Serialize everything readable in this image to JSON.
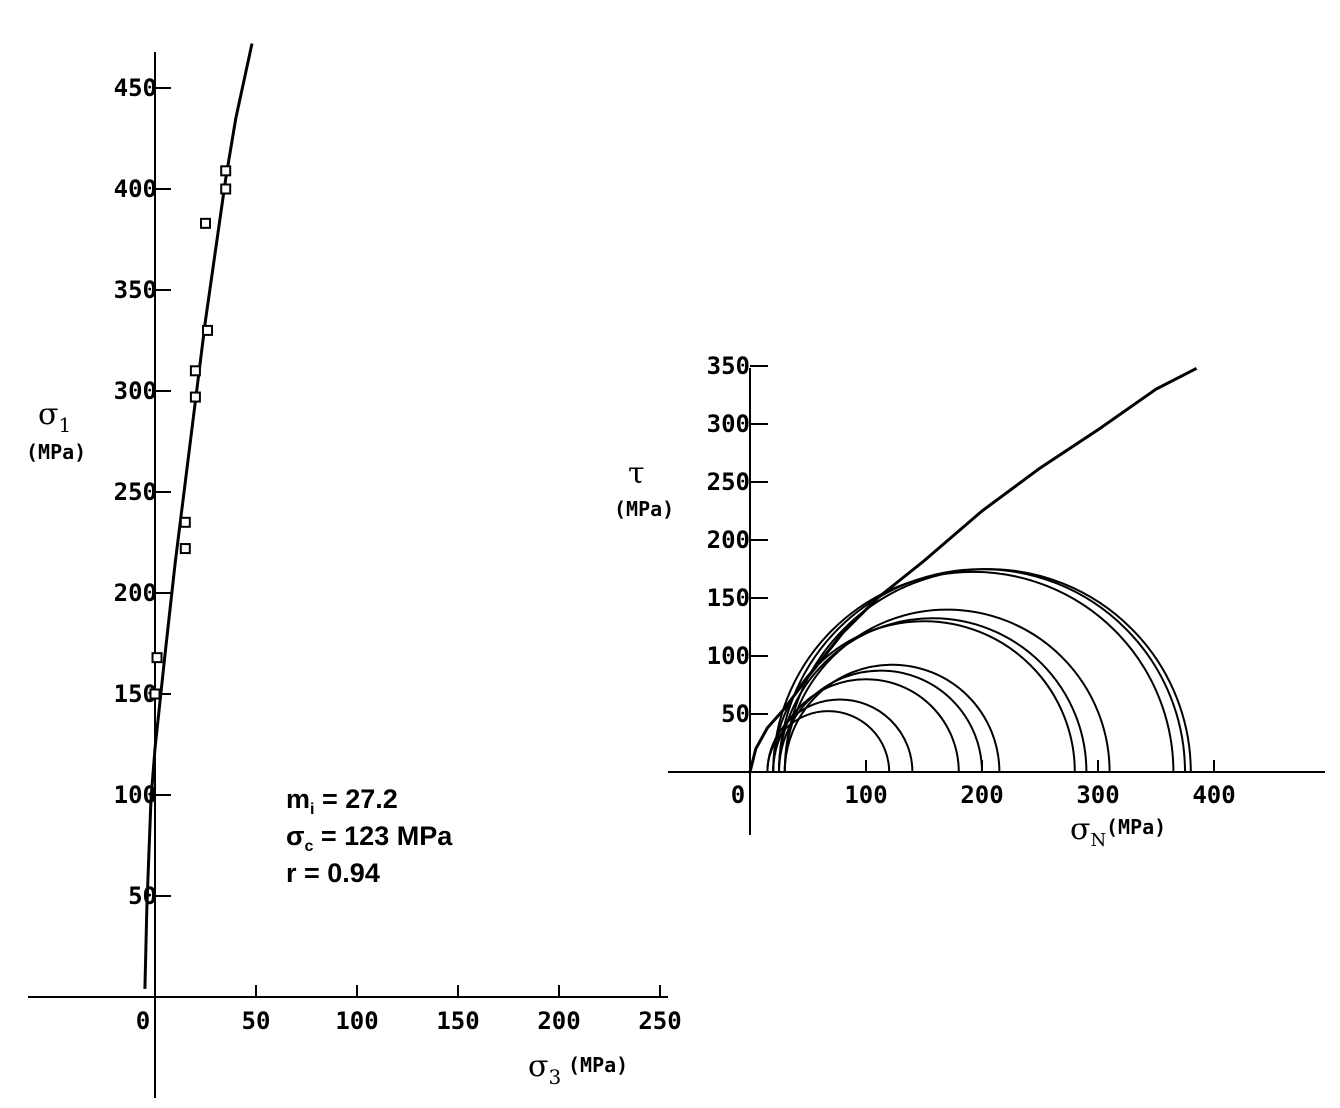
{
  "chart_data": [
    {
      "type": "scatter",
      "x_symbol": "σ",
      "x_subscript": "3",
      "x_unit": "(MPa)",
      "y_symbol": "σ",
      "y_subscript": "1",
      "y_unit": "(MPa)",
      "xlim": [
        0,
        250
      ],
      "ylim": [
        0,
        470
      ],
      "x_ticks": [
        0,
        50,
        100,
        150,
        200,
        250
      ],
      "y_ticks": [
        50,
        100,
        150,
        200,
        250,
        300,
        350,
        400,
        450
      ],
      "grid": false,
      "points": [
        {
          "x": 0,
          "y": 150
        },
        {
          "x": 1,
          "y": 168
        },
        {
          "x": 15,
          "y": 222
        },
        {
          "x": 15,
          "y": 235
        },
        {
          "x": 20,
          "y": 297
        },
        {
          "x": 20,
          "y": 310
        },
        {
          "x": 26,
          "y": 330
        },
        {
          "x": 25,
          "y": 383
        },
        {
          "x": 35,
          "y": 400
        },
        {
          "x": 35,
          "y": 409
        }
      ],
      "fit_curve": [
        {
          "x": -5,
          "y": 4
        },
        {
          "x": -4,
          "y": 45
        },
        {
          "x": -2,
          "y": 98
        },
        {
          "x": 0,
          "y": 123
        },
        {
          "x": 5,
          "y": 170
        },
        {
          "x": 10,
          "y": 215
        },
        {
          "x": 15,
          "y": 255
        },
        {
          "x": 20,
          "y": 295
        },
        {
          "x": 25,
          "y": 335
        },
        {
          "x": 30,
          "y": 370
        },
        {
          "x": 35,
          "y": 405
        },
        {
          "x": 40,
          "y": 435
        },
        {
          "x": 48,
          "y": 472
        }
      ],
      "annotations": [
        {
          "name": "m",
          "sub": "i",
          "value": " = 27.2"
        },
        {
          "name": "σ",
          "sub": "c",
          "value": " = 123 MPa"
        },
        {
          "name": "r",
          "sub": "",
          "value": " = 0.94"
        }
      ]
    },
    {
      "type": "line",
      "x_symbol": "σ",
      "x_subscript": "N",
      "x_unit": "(MPa)",
      "y_symbol": "τ",
      "y_unit": "(MPa)",
      "xlim": [
        0,
        450
      ],
      "ylim": [
        0,
        350
      ],
      "x_ticks": [
        0,
        100,
        200,
        300,
        400
      ],
      "y_ticks": [
        50,
        100,
        150,
        200,
        250,
        300,
        350
      ],
      "grid": false,
      "envelope": [
        {
          "x": 0,
          "y": 0
        },
        {
          "x": 5,
          "y": 20
        },
        {
          "x": 15,
          "y": 38
        },
        {
          "x": 30,
          "y": 55
        },
        {
          "x": 50,
          "y": 82
        },
        {
          "x": 80,
          "y": 120
        },
        {
          "x": 110,
          "y": 150
        },
        {
          "x": 150,
          "y": 182
        },
        {
          "x": 200,
          "y": 225
        },
        {
          "x": 250,
          "y": 262
        },
        {
          "x": 300,
          "y": 295
        },
        {
          "x": 350,
          "y": 330
        },
        {
          "x": 385,
          "y": 348
        }
      ],
      "mohr_circles": [
        {
          "s3": 15,
          "s1": 120
        },
        {
          "s3": 15,
          "s1": 140
        },
        {
          "s3": 20,
          "s1": 180
        },
        {
          "s3": 25,
          "s1": 200
        },
        {
          "s3": 30,
          "s1": 215
        },
        {
          "s3": 20,
          "s1": 280
        },
        {
          "s3": 25,
          "s1": 290
        },
        {
          "s3": 30,
          "s1": 310
        },
        {
          "s3": 20,
          "s1": 365
        },
        {
          "s3": 25,
          "s1": 375
        },
        {
          "s3": 30,
          "s1": 380
        }
      ]
    }
  ]
}
